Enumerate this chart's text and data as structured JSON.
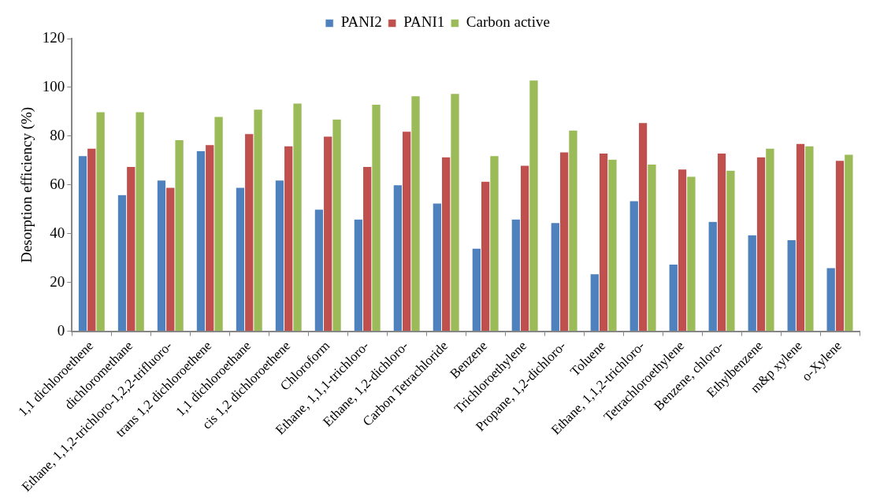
{
  "chart_data": {
    "type": "bar",
    "ylabel": "Desorption efficiency (%)",
    "categories": [
      "1,1 dichloroethene",
      "dichloromethane",
      "Ethane, 1,1,2-trichloro-1,2,2-trifluoro-",
      "trans 1,2 dichloroethene",
      "1,1 dichloroethane",
      "cis 1,2 dichloroethene",
      "Chloroform",
      "Ethane, 1,1,1-trichloro-",
      "Ethane, 1,2-dichloro-",
      "Carbon Tetrachloride",
      "Benzene",
      "Trichloroethylene",
      "Propane, 1,2-dichloro-",
      "Toluene",
      "Ethane, 1,1,2-trichloro-",
      "Tetrachloroethylene",
      "Benzene, chloro-",
      "Ethylbenzene",
      "m&p xylene",
      "o-Xylene"
    ],
    "series": [
      {
        "name": "PANI2",
        "color": "#4f81bd",
        "values": [
          72,
          56,
          62,
          74,
          59,
          62,
          50,
          46,
          60,
          52.5,
          34,
          46,
          44.5,
          23.5,
          53.5,
          27.5,
          45,
          39.5,
          37.5,
          26
        ]
      },
      {
        "name": "PANI1",
        "color": "#c0504d",
        "values": [
          75,
          67.5,
          59,
          76.5,
          81,
          76,
          80,
          67.5,
          82,
          71.5,
          61.5,
          68,
          73.5,
          73,
          85.5,
          66.5,
          73,
          71.5,
          77,
          70
        ]
      },
      {
        "name": "Carbon active",
        "color": "#9bbb59",
        "values": [
          90,
          90,
          78.5,
          88,
          91,
          93.5,
          87,
          93,
          96.5,
          97.5,
          72,
          103,
          82.5,
          70.5,
          68.5,
          63.5,
          66,
          75,
          76,
          72.5
        ]
      }
    ],
    "ylim": [
      0,
      120
    ],
    "yticks": [
      0,
      20,
      40,
      60,
      80,
      100,
      120
    ],
    "grid": false,
    "legend": "top"
  }
}
